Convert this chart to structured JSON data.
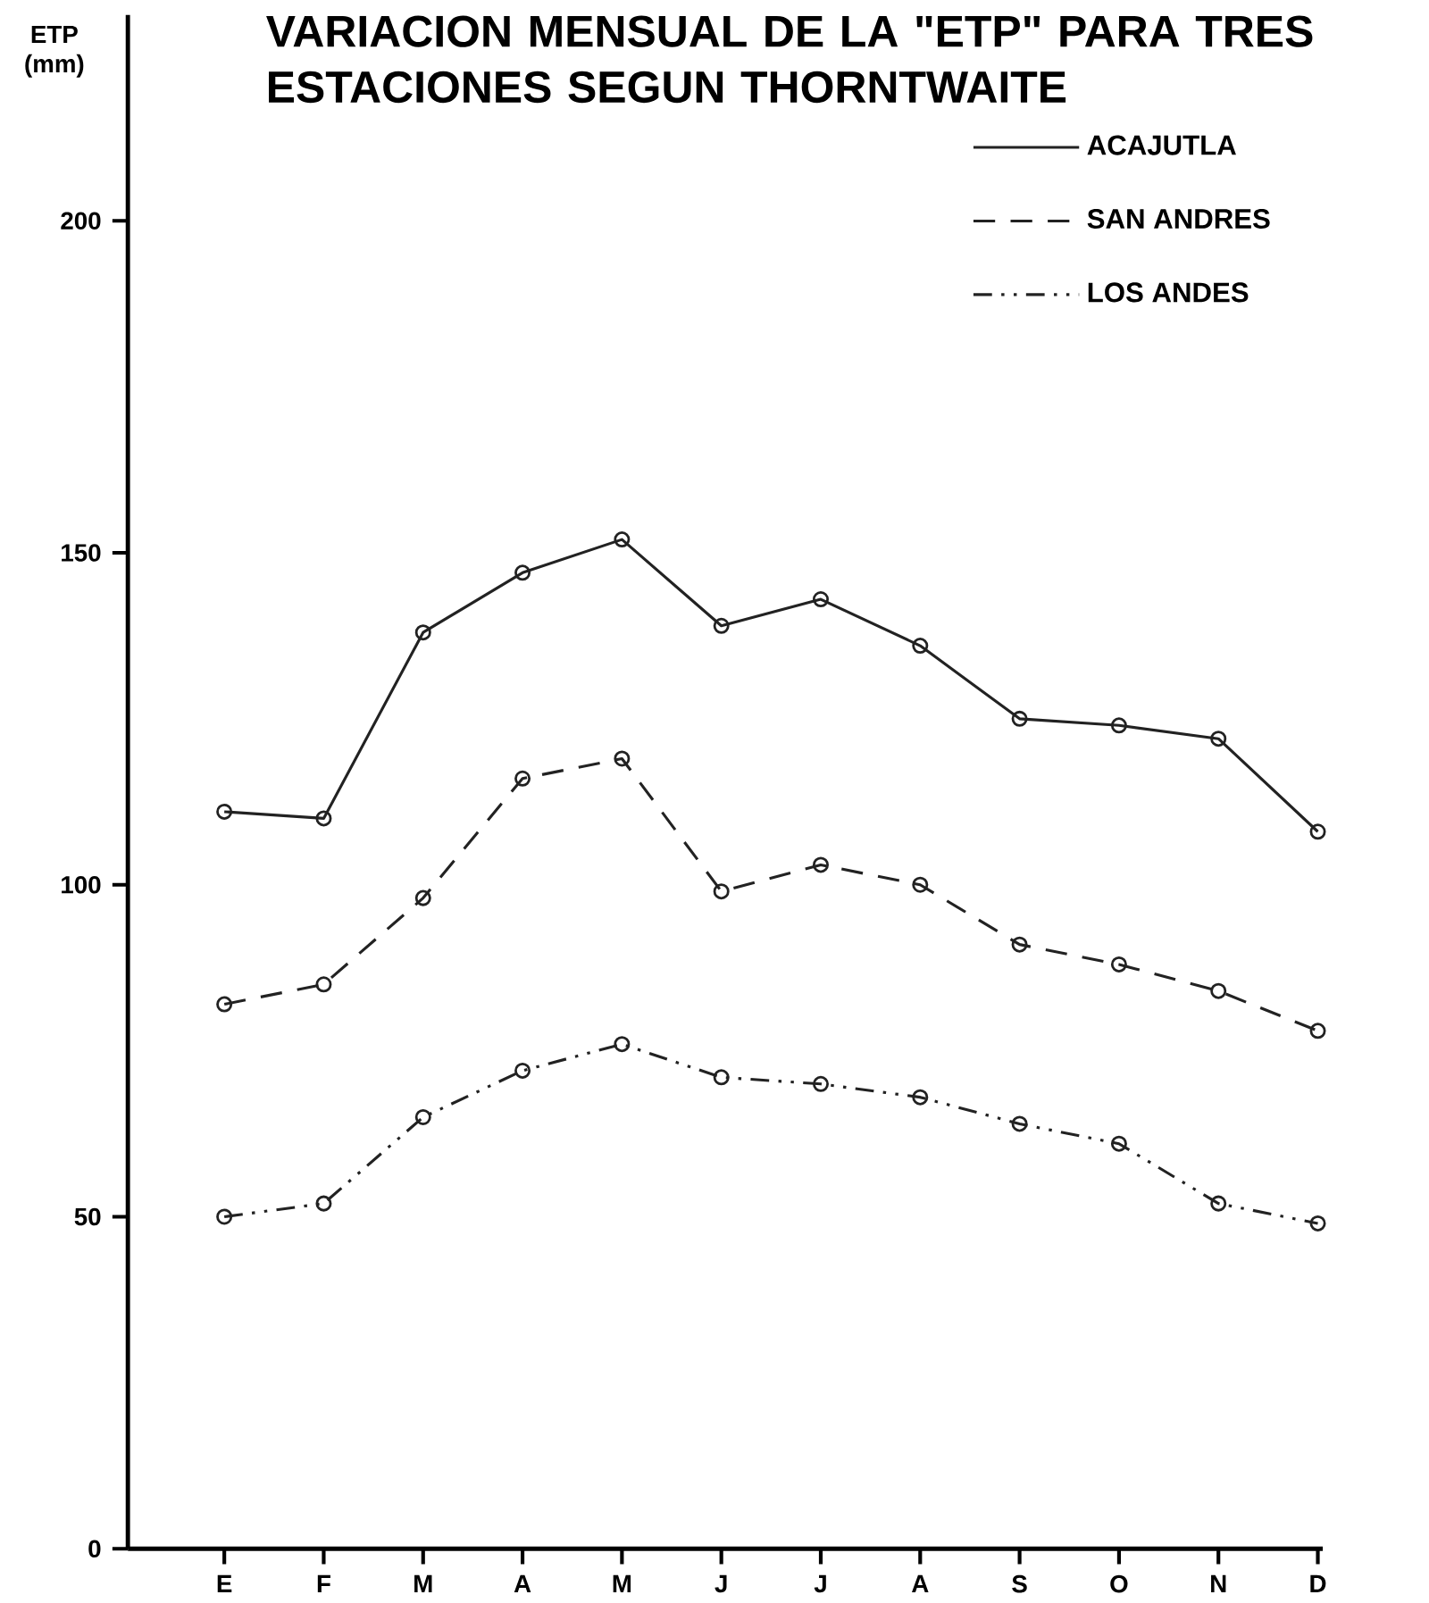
{
  "chart_data": {
    "type": "line",
    "title": "VARIACION MENSUAL DE LA \"ETP\" PARA TRES ESTACIONES SEGUN THORNTWAITE",
    "ylabel": "ETP (mm)",
    "categories": [
      "E",
      "F",
      "M",
      "A",
      "M",
      "J",
      "J",
      "A",
      "S",
      "O",
      "N",
      "D"
    ],
    "series": [
      {
        "name": "ACAJUTLA",
        "color": "#222222",
        "line_style": "solid",
        "values": [
          111,
          110,
          138,
          147,
          152,
          139,
          143,
          136,
          125,
          124,
          122,
          108
        ]
      },
      {
        "name": "SAN ANDRES",
        "color": "#222222",
        "line_style": "dashed",
        "values": [
          82,
          85,
          98,
          116,
          119,
          99,
          103,
          100,
          91,
          88,
          84,
          78
        ]
      },
      {
        "name": "LOS ANDES",
        "color": "#222222",
        "line_style": "dashdotdotted",
        "values": [
          50,
          52,
          65,
          72,
          76,
          71,
          70,
          68,
          64,
          61,
          52,
          49
        ]
      }
    ],
    "ylim": [
      0,
      231
    ],
    "yticks": [
      0,
      50,
      100,
      150,
      200
    ],
    "marker": "circle",
    "legend": "top right",
    "grid": false
  }
}
